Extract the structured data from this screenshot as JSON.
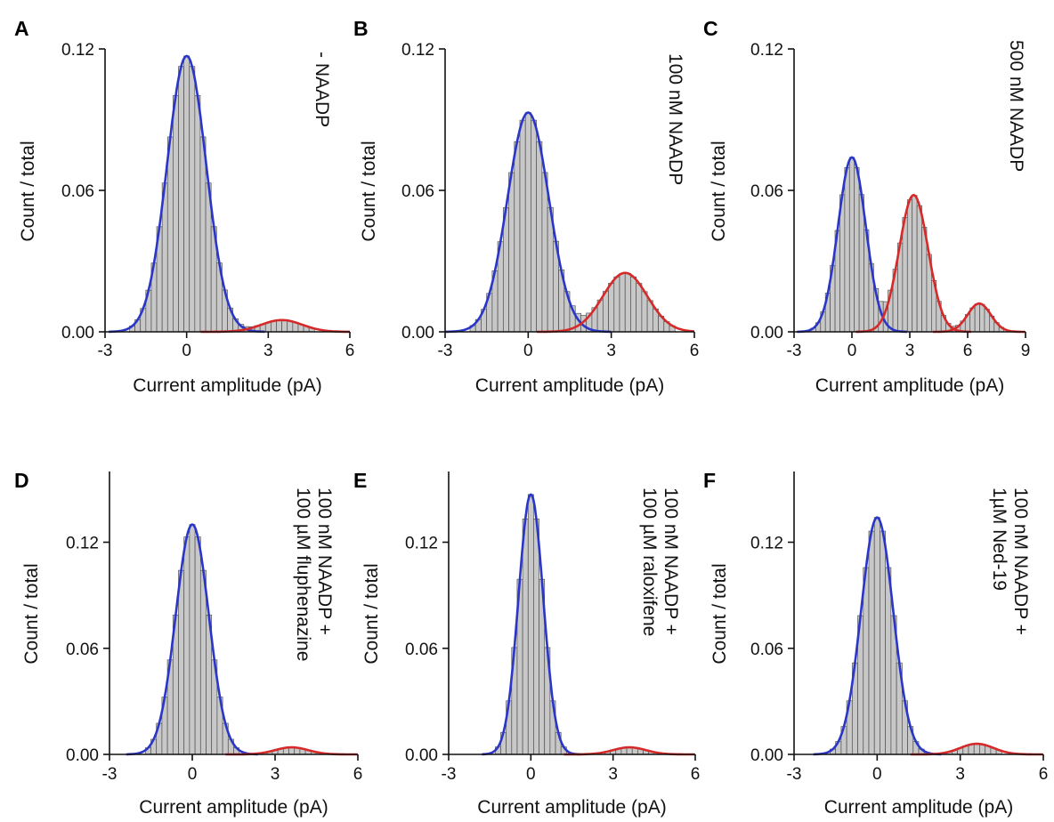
{
  "colors": {
    "bar_fill": "#c8c8c8",
    "bar_stroke": "#505050",
    "closed_fit": "#2a36c8",
    "open_fit": "#d62a2a",
    "axis": "#111111"
  },
  "chart_data": [
    {
      "type": "bar",
      "panel": "A",
      "condition": [
        "- NAADP"
      ],
      "xlabel": "Current amplitude (pA)",
      "ylabel": "Count / total",
      "xlim": [
        -3,
        6
      ],
      "ylim": [
        0,
        0.12
      ],
      "xticks": [
        "-3",
        "0",
        "3",
        "6"
      ],
      "yticks": [
        "0.00",
        "0.06",
        "0.12"
      ],
      "bin_width": 0.2,
      "fits": [
        {
          "color": "closed",
          "amplitude": 0.117,
          "mean": 0,
          "sd": 0.72
        },
        {
          "color": "open",
          "amplitude": 0.005,
          "mean": 3.5,
          "sd": 0.75
        }
      ]
    },
    {
      "type": "bar",
      "panel": "B",
      "condition": [
        "100 nM NAADP"
      ],
      "xlabel": "Current amplitude (pA)",
      "ylabel": "Count / total",
      "xlim": [
        -3,
        6
      ],
      "ylim": [
        0,
        0.12
      ],
      "xticks": [
        "-3",
        "0",
        "3",
        "6"
      ],
      "yticks": [
        "0.00",
        "0.06",
        "0.12"
      ],
      "bin_width": 0.2,
      "fits": [
        {
          "color": "closed",
          "amplitude": 0.093,
          "mean": 0,
          "sd": 0.75
        },
        {
          "color": "open",
          "amplitude": 0.025,
          "mean": 3.5,
          "sd": 0.8
        }
      ]
    },
    {
      "type": "bar",
      "panel": "C",
      "condition": [
        "500 nM NAADP"
      ],
      "xlabel": "Current amplitude (pA)",
      "ylabel": "Count / total",
      "xlim": [
        -3,
        9
      ],
      "ylim": [
        0,
        0.12
      ],
      "xticks": [
        "-3",
        "0",
        "3",
        "6",
        "9"
      ],
      "yticks": [
        "0.00",
        "0.06",
        "0.12"
      ],
      "bin_width": 0.25,
      "fits": [
        {
          "color": "closed",
          "amplitude": 0.074,
          "mean": 0,
          "sd": 0.72
        },
        {
          "color": "open",
          "amplitude": 0.058,
          "mean": 3.2,
          "sd": 0.75
        },
        {
          "color": "open",
          "amplitude": 0.012,
          "mean": 6.6,
          "sd": 0.6
        }
      ]
    },
    {
      "type": "bar",
      "panel": "D",
      "condition": [
        "100 nM NAADP +",
        "100 µM fluphenazine"
      ],
      "xlabel": "Current amplitude (pA)",
      "ylabel": "Count / total",
      "xlim": [
        -3,
        6
      ],
      "ylim": [
        0,
        0.16
      ],
      "xticks": [
        "-3",
        "0",
        "3",
        "6"
      ],
      "yticks": [
        "0.00",
        "0.06",
        "0.12"
      ],
      "bin_width": 0.2,
      "fits": [
        {
          "color": "closed",
          "amplitude": 0.13,
          "mean": 0,
          "sd": 0.6
        },
        {
          "color": "open",
          "amplitude": 0.004,
          "mean": 3.6,
          "sd": 0.6
        }
      ]
    },
    {
      "type": "bar",
      "panel": "E",
      "condition": [
        "100 nM NAADP +",
        "100 µM raloxifene"
      ],
      "xlabel": "Current amplitude (pA)",
      "ylabel": "Count / total",
      "xlim": [
        -3,
        6
      ],
      "ylim": [
        0,
        0.16
      ],
      "xticks": [
        "-3",
        "0",
        "3",
        "6"
      ],
      "yticks": [
        "0.00",
        "0.06",
        "0.12"
      ],
      "bin_width": 0.2,
      "fits": [
        {
          "color": "closed",
          "amplitude": 0.147,
          "mean": 0,
          "sd": 0.45
        },
        {
          "color": "open",
          "amplitude": 0.004,
          "mean": 3.6,
          "sd": 0.6
        }
      ]
    },
    {
      "type": "bar",
      "panel": "F",
      "condition": [
        "100 nM NAADP +",
        "1µM Ned-19"
      ],
      "xlabel": "Current amplitude (pA)",
      "ylabel": "Count / total",
      "xlim": [
        -3,
        6
      ],
      "ylim": [
        0,
        0.16
      ],
      "xticks": [
        "-3",
        "0",
        "3",
        "6"
      ],
      "yticks": [
        "0.00",
        "0.06",
        "0.12"
      ],
      "bin_width": 0.2,
      "fits": [
        {
          "color": "closed",
          "amplitude": 0.134,
          "mean": 0,
          "sd": 0.58
        },
        {
          "color": "open",
          "amplitude": 0.006,
          "mean": 3.6,
          "sd": 0.6
        }
      ]
    }
  ]
}
